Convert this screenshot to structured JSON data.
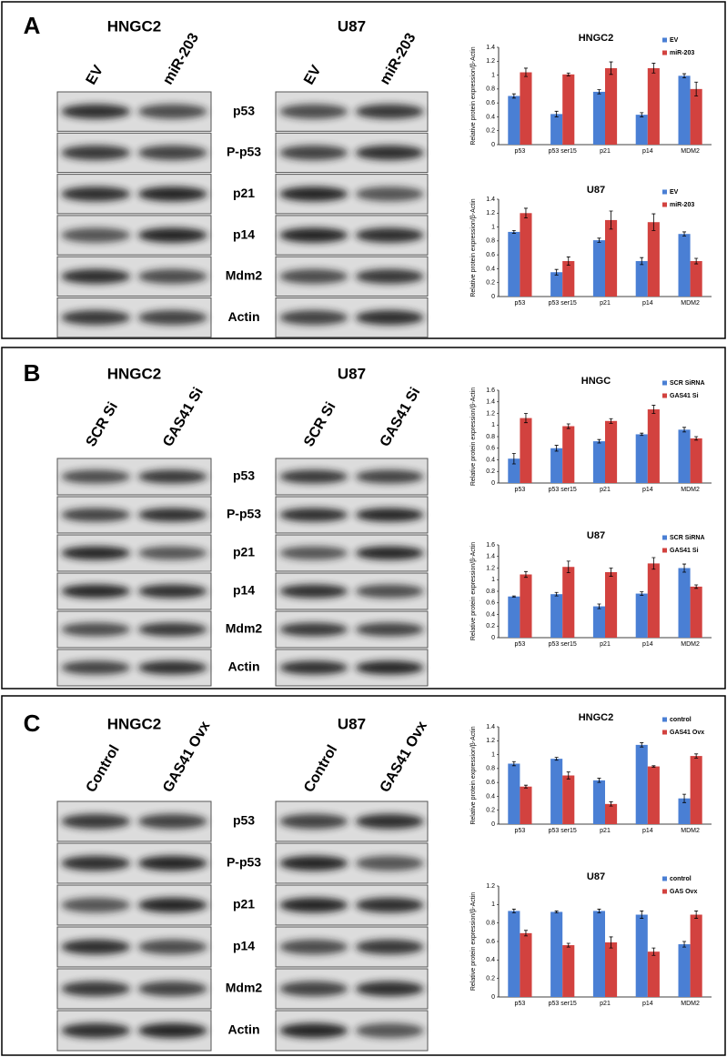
{
  "panels": [
    {
      "label": "A",
      "proteins": [
        "p53",
        "P-p53",
        "p21",
        "p14",
        "Mdm2",
        "Actin"
      ],
      "blots": [
        {
          "title": "HNGC2",
          "lanes": [
            "EV",
            "miR-203"
          ]
        },
        {
          "title": "U87",
          "lanes": [
            "EV",
            "miR-203"
          ]
        }
      ]
    },
    {
      "label": "B",
      "proteins": [
        "p53",
        "P-p53",
        "p21",
        "p14",
        "Mdm2",
        "Actin"
      ],
      "blots": [
        {
          "title": "HNGC2",
          "lanes": [
            "SCR Si",
            "GAS41 Si"
          ]
        },
        {
          "title": "U87",
          "lanes": [
            "SCR Si",
            "GAS41 Si"
          ]
        }
      ]
    },
    {
      "label": "C",
      "proteins": [
        "p53",
        "P-p53",
        "p21",
        "p14",
        "Mdm2",
        "Actin"
      ],
      "blots": [
        {
          "title": "HNGC2",
          "lanes": [
            "Control",
            "GAS41 Ovx"
          ]
        },
        {
          "title": "U87",
          "lanes": [
            "Control",
            "GAS41 Ovx"
          ]
        }
      ]
    }
  ],
  "chart_data": [
    {
      "type": "bar",
      "title": "HNGC2",
      "ylabel": "Relative protein expression/β-Actin",
      "categories": [
        "p53",
        "p53 ser15",
        "p21",
        "p14",
        "MDM2"
      ],
      "series": [
        {
          "name": "EV",
          "color": "#4a7fd4",
          "values": [
            0.7,
            0.44,
            0.76,
            0.43,
            0.99
          ],
          "errors": [
            0.03,
            0.04,
            0.03,
            0.03,
            0.03
          ]
        },
        {
          "name": "miR-203",
          "color": "#d2423f",
          "values": [
            1.04,
            1.01,
            1.1,
            1.1,
            0.8
          ],
          "errors": [
            0.06,
            0.02,
            0.09,
            0.07,
            0.1
          ]
        }
      ],
      "ylim": [
        0,
        1.4
      ],
      "yticks": [
        0,
        0.2,
        0.4,
        0.6,
        0.8,
        1,
        1.2,
        1.4
      ],
      "legend": "upper right"
    },
    {
      "type": "bar",
      "title": "U87",
      "ylabel": "Relative protein expression/β-Actin",
      "categories": [
        "p53",
        "p53 ser15",
        "p21",
        "p14",
        "MDM2"
      ],
      "series": [
        {
          "name": "EV",
          "color": "#4a7fd4",
          "values": [
            0.93,
            0.35,
            0.81,
            0.51,
            0.9
          ],
          "errors": [
            0.02,
            0.04,
            0.03,
            0.05,
            0.03
          ]
        },
        {
          "name": "miR-203",
          "color": "#d2423f",
          "values": [
            1.2,
            0.51,
            1.1,
            1.07,
            0.51
          ],
          "errors": [
            0.07,
            0.06,
            0.13,
            0.12,
            0.04
          ]
        }
      ],
      "ylim": [
        0,
        1.4
      ],
      "yticks": [
        0,
        0.2,
        0.4,
        0.6,
        0.8,
        1,
        1.2,
        1.4
      ],
      "legend": "upper right"
    },
    {
      "type": "bar",
      "title": "HNGC",
      "ylabel": "Relative protein expression/β-Actin",
      "categories": [
        "p53",
        "p53 ser15",
        "p21",
        "p14",
        "MDM2"
      ],
      "series": [
        {
          "name": "SCR SiRNA",
          "color": "#4a7fd4",
          "values": [
            0.42,
            0.6,
            0.72,
            0.84,
            0.92
          ],
          "errors": [
            0.09,
            0.05,
            0.03,
            0.02,
            0.04
          ]
        },
        {
          "name": "GAS41 Si",
          "color": "#d2423f",
          "values": [
            1.12,
            0.98,
            1.07,
            1.27,
            0.77
          ],
          "errors": [
            0.08,
            0.04,
            0.04,
            0.07,
            0.03
          ]
        }
      ],
      "ylim": [
        0,
        1.6
      ],
      "yticks": [
        0,
        0.2,
        0.4,
        0.6,
        0.8,
        1,
        1.2,
        1.4,
        1.6
      ],
      "legend": "upper right"
    },
    {
      "type": "bar",
      "title": "U87",
      "ylabel": "Relative protein expression/β-Actin",
      "categories": [
        "p53",
        "p53 ser15",
        "p21",
        "p14",
        "MDM2"
      ],
      "series": [
        {
          "name": "SCR SiRNA",
          "color": "#4a7fd4",
          "values": [
            0.71,
            0.75,
            0.54,
            0.76,
            1.2
          ],
          "errors": [
            0.01,
            0.03,
            0.04,
            0.03,
            0.07
          ]
        },
        {
          "name": "GAS41 Si",
          "color": "#d2423f",
          "values": [
            1.09,
            1.22,
            1.13,
            1.28,
            0.88
          ],
          "errors": [
            0.05,
            0.1,
            0.07,
            0.1,
            0.03
          ]
        }
      ],
      "ylim": [
        0,
        1.6
      ],
      "yticks": [
        0,
        0.2,
        0.4,
        0.6,
        0.8,
        1,
        1.2,
        1.4,
        1.6
      ],
      "legend": "upper right"
    },
    {
      "type": "bar",
      "title": "HNGC2",
      "ylabel": "Relative protein expression/β-Actin",
      "categories": [
        "p53",
        "p53 ser15",
        "p21",
        "p14",
        "MDM2"
      ],
      "series": [
        {
          "name": "control",
          "color": "#4a7fd4",
          "values": [
            0.87,
            0.94,
            0.63,
            1.14,
            0.37
          ],
          "errors": [
            0.03,
            0.02,
            0.03,
            0.03,
            0.06
          ]
        },
        {
          "name": "GAS41 Ovx",
          "color": "#d2423f",
          "values": [
            0.54,
            0.7,
            0.29,
            0.83,
            0.98
          ],
          "errors": [
            0.02,
            0.05,
            0.03,
            0.01,
            0.03
          ]
        }
      ],
      "ylim": [
        0,
        1.4
      ],
      "yticks": [
        0,
        0.2,
        0.4,
        0.6,
        0.8,
        1,
        1.2,
        1.4
      ],
      "legend": "upper right"
    },
    {
      "type": "bar",
      "title": "U87",
      "ylabel": "Relative protein expression/β-Actin",
      "categories": [
        "p53",
        "p53 ser15",
        "p21",
        "p14",
        "MDM2"
      ],
      "series": [
        {
          "name": "control",
          "color": "#4a7fd4",
          "values": [
            0.93,
            0.92,
            0.93,
            0.89,
            0.57
          ],
          "errors": [
            0.02,
            0.01,
            0.02,
            0.04,
            0.03
          ]
        },
        {
          "name": "GAS Ovx",
          "color": "#d2423f",
          "values": [
            0.69,
            0.56,
            0.59,
            0.49,
            0.89
          ],
          "errors": [
            0.03,
            0.02,
            0.06,
            0.04,
            0.04
          ]
        }
      ],
      "ylim": [
        0,
        1.2
      ],
      "yticks": [
        0,
        0.2,
        0.4,
        0.6,
        0.8,
        1,
        1.2
      ],
      "legend": "upper right"
    }
  ]
}
